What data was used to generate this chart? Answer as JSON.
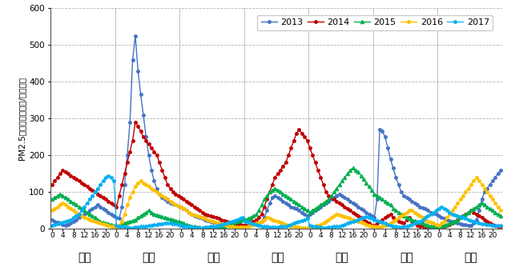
{
  "ylabel": "PM2.5小时浓度（微克/立方米）",
  "ylim": [
    0,
    600
  ],
  "yticks": [
    0,
    100,
    200,
    300,
    400,
    500,
    600
  ],
  "days": [
    "除夕",
    "初一",
    "初二",
    "初三",
    "初四",
    "初五",
    "初六"
  ],
  "hours_per_day": 24,
  "hour_ticks": [
    0,
    4,
    8,
    12,
    16,
    20
  ],
  "series": {
    "2013": {
      "color": "#4472C4",
      "marker": "o",
      "markersize": 2.5,
      "linewidth": 1.0,
      "values": [
        25,
        20,
        18,
        15,
        12,
        10,
        12,
        15,
        20,
        25,
        30,
        35,
        40,
        45,
        50,
        55,
        60,
        65,
        60,
        55,
        50,
        45,
        40,
        35,
        30,
        28,
        60,
        120,
        200,
        290,
        460,
        525,
        430,
        365,
        310,
        250,
        200,
        160,
        130,
        110,
        95,
        85,
        80,
        75,
        70,
        68,
        65,
        62,
        60,
        55,
        50,
        45,
        40,
        35,
        32,
        30,
        28,
        25,
        22,
        20,
        18,
        15,
        14,
        13,
        12,
        11,
        10,
        12,
        14,
        16,
        20,
        25,
        25,
        22,
        20,
        18,
        16,
        15,
        20,
        30,
        50,
        70,
        85,
        90,
        85,
        80,
        75,
        70,
        65,
        60,
        58,
        55,
        50,
        45,
        40,
        35,
        40,
        45,
        50,
        55,
        60,
        65,
        70,
        75,
        80,
        85,
        90,
        95,
        90,
        85,
        80,
        75,
        70,
        65,
        60,
        55,
        50,
        45,
        40,
        35,
        30,
        80,
        270,
        265,
        250,
        220,
        190,
        165,
        140,
        120,
        100,
        90,
        85,
        80,
        75,
        70,
        65,
        60,
        58,
        55,
        50,
        45,
        42,
        40,
        35,
        30,
        28,
        25,
        22,
        20,
        18,
        15,
        14,
        12,
        11,
        10,
        9,
        15,
        25,
        50,
        80,
        100,
        110,
        120,
        130,
        140,
        150,
        160
      ]
    },
    "2014": {
      "color": "#C00000",
      "marker": "o",
      "markersize": 2.5,
      "linewidth": 1.0,
      "values": [
        120,
        130,
        140,
        150,
        160,
        155,
        150,
        145,
        140,
        135,
        130,
        125,
        120,
        115,
        110,
        105,
        100,
        95,
        90,
        85,
        80,
        75,
        70,
        65,
        60,
        90,
        120,
        150,
        180,
        210,
        240,
        290,
        280,
        265,
        250,
        240,
        230,
        220,
        210,
        200,
        180,
        160,
        140,
        120,
        110,
        100,
        95,
        90,
        85,
        80,
        75,
        70,
        65,
        60,
        55,
        50,
        45,
        40,
        38,
        35,
        33,
        30,
        28,
        25,
        22,
        20,
        18,
        15,
        14,
        12,
        11,
        10,
        10,
        12,
        15,
        20,
        25,
        30,
        40,
        60,
        80,
        100,
        120,
        140,
        150,
        160,
        170,
        180,
        200,
        220,
        240,
        260,
        270,
        260,
        250,
        240,
        220,
        200,
        180,
        160,
        140,
        120,
        100,
        90,
        85,
        80,
        75,
        70,
        65,
        60,
        55,
        50,
        45,
        40,
        35,
        30,
        25,
        20,
        15,
        10,
        10,
        15,
        20,
        25,
        30,
        35,
        40,
        30,
        25,
        20,
        18,
        15,
        25,
        30,
        20,
        15,
        10,
        8,
        6,
        5,
        4,
        3,
        3,
        3,
        3,
        5,
        8,
        10,
        12,
        15,
        20,
        25,
        30,
        35,
        40,
        45,
        50,
        45,
        40,
        35,
        30,
        25,
        20,
        15,
        12,
        10,
        8,
        7
      ]
    },
    "2015": {
      "color": "#00B050",
      "marker": "^",
      "markersize": 3,
      "linewidth": 1.0,
      "values": [
        80,
        85,
        90,
        95,
        90,
        85,
        80,
        75,
        70,
        65,
        60,
        55,
        50,
        45,
        40,
        35,
        30,
        25,
        20,
        18,
        16,
        14,
        12,
        10,
        8,
        10,
        12,
        15,
        18,
        20,
        22,
        25,
        30,
        35,
        40,
        45,
        50,
        45,
        40,
        38,
        35,
        32,
        30,
        28,
        26,
        24,
        22,
        20,
        18,
        15,
        12,
        10,
        8,
        6,
        5,
        4,
        3,
        3,
        3,
        3,
        4,
        5,
        6,
        7,
        8,
        10,
        12,
        15,
        18,
        20,
        22,
        25,
        25,
        28,
        30,
        35,
        40,
        50,
        65,
        80,
        90,
        100,
        105,
        110,
        105,
        100,
        95,
        90,
        85,
        80,
        75,
        70,
        65,
        60,
        55,
        50,
        45,
        50,
        55,
        60,
        65,
        70,
        75,
        80,
        90,
        100,
        110,
        120,
        130,
        140,
        150,
        160,
        165,
        160,
        155,
        145,
        135,
        125,
        115,
        105,
        95,
        90,
        85,
        80,
        75,
        70,
        65,
        55,
        50,
        45,
        40,
        35,
        30,
        28,
        25,
        22,
        20,
        18,
        15,
        12,
        10,
        8,
        6,
        5,
        5,
        8,
        10,
        12,
        15,
        18,
        20,
        25,
        30,
        35,
        40,
        45,
        50,
        55,
        60,
        65,
        70,
        65,
        60,
        55,
        50,
        45,
        40,
        35
      ]
    },
    "2016": {
      "color": "#FFC000",
      "marker": "o",
      "markersize": 2.5,
      "linewidth": 1.0,
      "values": [
        50,
        55,
        60,
        65,
        70,
        65,
        60,
        55,
        50,
        45,
        40,
        35,
        30,
        28,
        25,
        22,
        20,
        18,
        16,
        14,
        12,
        10,
        8,
        6,
        5,
        10,
        20,
        40,
        65,
        85,
        100,
        115,
        125,
        130,
        125,
        120,
        115,
        110,
        105,
        100,
        95,
        90,
        85,
        80,
        75,
        70,
        65,
        62,
        60,
        55,
        50,
        45,
        40,
        38,
        35,
        32,
        30,
        28,
        25,
        22,
        20,
        18,
        15,
        14,
        12,
        10,
        8,
        6,
        5,
        5,
        5,
        5,
        5,
        8,
        10,
        12,
        15,
        18,
        20,
        25,
        30,
        28,
        25,
        22,
        20,
        18,
        15,
        12,
        10,
        8,
        6,
        5,
        4,
        3,
        3,
        3,
        3,
        5,
        8,
        10,
        12,
        15,
        20,
        25,
        30,
        35,
        40,
        38,
        35,
        32,
        30,
        28,
        25,
        22,
        20,
        18,
        15,
        12,
        10,
        8,
        6,
        5,
        5,
        8,
        10,
        12,
        15,
        20,
        25,
        30,
        35,
        40,
        45,
        50,
        50,
        45,
        40,
        35,
        30,
        25,
        20,
        18,
        15,
        12,
        10,
        15,
        20,
        30,
        40,
        50,
        60,
        70,
        80,
        90,
        100,
        110,
        120,
        130,
        140,
        130,
        120,
        110,
        100,
        90,
        80,
        70,
        60,
        50
      ]
    },
    "2017": {
      "color": "#00B0F0",
      "marker": "*",
      "markersize": 3.5,
      "linewidth": 0.9,
      "values": [
        10,
        12,
        14,
        16,
        18,
        20,
        22,
        25,
        30,
        35,
        40,
        50,
        60,
        70,
        80,
        90,
        100,
        110,
        120,
        130,
        140,
        145,
        140,
        130,
        10,
        8,
        6,
        5,
        4,
        3,
        3,
        4,
        5,
        6,
        7,
        8,
        9,
        10,
        11,
        12,
        13,
        14,
        15,
        16,
        15,
        14,
        13,
        12,
        10,
        8,
        7,
        6,
        5,
        4,
        3,
        3,
        3,
        4,
        5,
        6,
        7,
        8,
        10,
        12,
        14,
        16,
        18,
        20,
        22,
        25,
        28,
        30,
        20,
        18,
        16,
        14,
        12,
        10,
        8,
        7,
        6,
        5,
        5,
        5,
        5,
        6,
        7,
        8,
        10,
        12,
        15,
        18,
        20,
        22,
        25,
        28,
        10,
        8,
        6,
        5,
        4,
        3,
        3,
        4,
        5,
        6,
        7,
        8,
        10,
        12,
        15,
        18,
        20,
        22,
        25,
        28,
        30,
        32,
        30,
        28,
        25,
        22,
        20,
        18,
        15,
        12,
        10,
        8,
        6,
        5,
        5,
        6,
        8,
        10,
        12,
        15,
        18,
        20,
        25,
        30,
        35,
        40,
        45,
        50,
        55,
        60,
        55,
        50,
        45,
        40,
        38,
        35,
        32,
        30,
        28,
        25,
        22,
        20,
        18,
        15,
        14,
        13,
        12,
        11,
        10,
        10,
        10,
        10
      ]
    }
  },
  "background_color": "#FFFFFF",
  "grid_color": "#AAAAAA",
  "legend_labels": [
    "2013",
    "2014",
    "2015",
    "2016",
    "2017"
  ]
}
